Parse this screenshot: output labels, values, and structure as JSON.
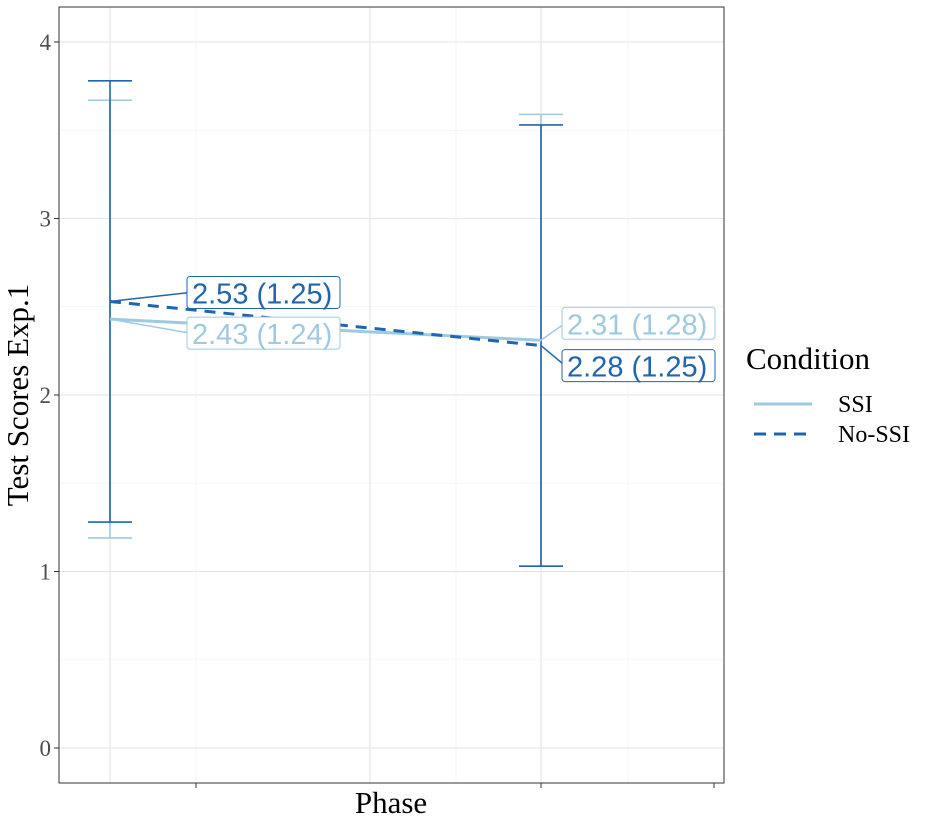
{
  "chart_data": {
    "type": "line",
    "title": "",
    "xlabel": "Phase",
    "ylabel": "Test Scores Exp.1",
    "ylim": [
      -0.2,
      4.2
    ],
    "y_ticks": [
      0,
      1,
      2,
      3,
      4
    ],
    "y_tick_labels": [
      "0",
      "1",
      "2",
      "3",
      "4"
    ],
    "x_positions": [
      1,
      2
    ],
    "x_tick_labels": [
      "",
      ""
    ],
    "grid": true,
    "legend": {
      "title": "Condition",
      "position": "right"
    },
    "colors": {
      "SSI": "#9ecae1",
      "No-SSI": "#2166ac"
    },
    "series": [
      {
        "name": "SSI",
        "line_style": "solid",
        "points": [
          {
            "x": 1,
            "mean": 2.43,
            "sd": 1.24,
            "label": "2.43 (1.24)"
          },
          {
            "x": 2,
            "mean": 2.31,
            "sd": 1.28,
            "label": "2.31 (1.28)"
          }
        ]
      },
      {
        "name": "No-SSI",
        "line_style": "dashed",
        "points": [
          {
            "x": 1,
            "mean": 2.53,
            "sd": 1.25,
            "label": "2.53 (1.25)"
          },
          {
            "x": 2,
            "mean": 2.28,
            "sd": 1.25,
            "label": "2.28 (1.25)"
          }
        ]
      }
    ]
  }
}
